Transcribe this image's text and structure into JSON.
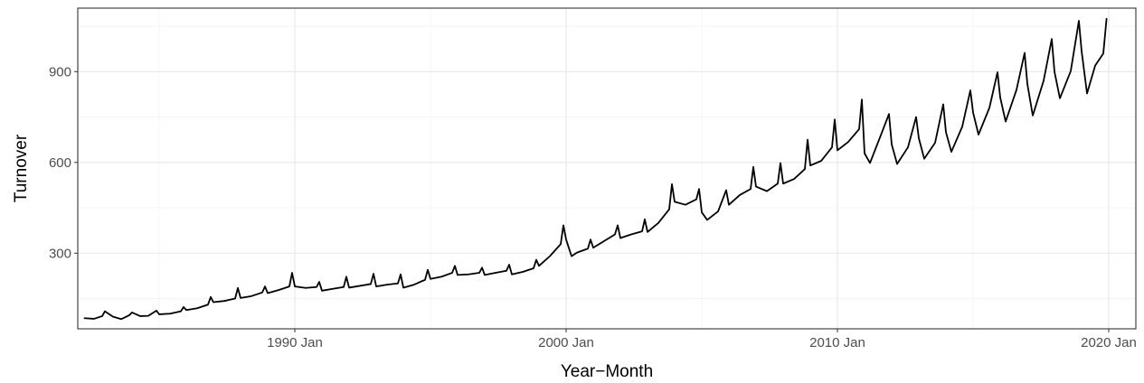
{
  "chart_data": {
    "type": "line",
    "title": "",
    "xlabel": "Year−Month",
    "ylabel": "Turnover",
    "xlim": [
      1982.0,
      2021.0
    ],
    "ylim": [
      50,
      1110
    ],
    "x_ticks": [
      {
        "value": 1990,
        "label": "1990 Jan"
      },
      {
        "value": 2000,
        "label": "2000 Jan"
      },
      {
        "value": 2010,
        "label": "2010 Jan"
      },
      {
        "value": 2020,
        "label": "2020 Jan"
      }
    ],
    "y_ticks": [
      {
        "value": 300,
        "label": "300"
      },
      {
        "value": 600,
        "label": "600"
      },
      {
        "value": 900,
        "label": "900"
      }
    ],
    "grid": true,
    "legend": "none",
    "series": [
      {
        "color": "#000000",
        "points": [
          [
            1982.25,
            85
          ],
          [
            1982.6,
            83
          ],
          [
            1982.9,
            92
          ],
          [
            1983.0,
            108
          ],
          [
            1983.3,
            90
          ],
          [
            1983.6,
            82
          ],
          [
            1983.9,
            95
          ],
          [
            1984.0,
            104
          ],
          [
            1984.3,
            92
          ],
          [
            1984.6,
            93
          ],
          [
            1984.9,
            110
          ],
          [
            1985.0,
            98
          ],
          [
            1985.4,
            100
          ],
          [
            1985.8,
            108
          ],
          [
            1985.9,
            122
          ],
          [
            1986.0,
            112
          ],
          [
            1986.4,
            118
          ],
          [
            1986.8,
            130
          ],
          [
            1986.9,
            155
          ],
          [
            1987.0,
            138
          ],
          [
            1987.4,
            142
          ],
          [
            1987.8,
            150
          ],
          [
            1987.9,
            185
          ],
          [
            1988.0,
            152
          ],
          [
            1988.4,
            158
          ],
          [
            1988.8,
            170
          ],
          [
            1988.9,
            190
          ],
          [
            1989.0,
            168
          ],
          [
            1989.4,
            178
          ],
          [
            1989.8,
            190
          ],
          [
            1989.9,
            235
          ],
          [
            1990.0,
            190
          ],
          [
            1990.4,
            185
          ],
          [
            1990.8,
            188
          ],
          [
            1990.9,
            205
          ],
          [
            1991.0,
            176
          ],
          [
            1991.4,
            182
          ],
          [
            1991.8,
            188
          ],
          [
            1991.9,
            222
          ],
          [
            1992.0,
            186
          ],
          [
            1992.4,
            192
          ],
          [
            1992.8,
            198
          ],
          [
            1992.9,
            232
          ],
          [
            1993.0,
            190
          ],
          [
            1993.4,
            196
          ],
          [
            1993.8,
            200
          ],
          [
            1993.9,
            230
          ],
          [
            1994.0,
            186
          ],
          [
            1994.4,
            196
          ],
          [
            1994.8,
            212
          ],
          [
            1994.9,
            245
          ],
          [
            1995.0,
            215
          ],
          [
            1995.4,
            222
          ],
          [
            1995.8,
            235
          ],
          [
            1995.9,
            258
          ],
          [
            1996.0,
            228
          ],
          [
            1996.4,
            230
          ],
          [
            1996.8,
            235
          ],
          [
            1996.9,
            252
          ],
          [
            1997.0,
            228
          ],
          [
            1997.4,
            235
          ],
          [
            1997.8,
            242
          ],
          [
            1997.9,
            262
          ],
          [
            1998.0,
            230
          ],
          [
            1998.4,
            238
          ],
          [
            1998.8,
            250
          ],
          [
            1998.9,
            278
          ],
          [
            1999.0,
            258
          ],
          [
            1999.4,
            290
          ],
          [
            1999.8,
            330
          ],
          [
            1999.9,
            392
          ],
          [
            2000.0,
            345
          ],
          [
            2000.2,
            290
          ],
          [
            2000.4,
            302
          ],
          [
            2000.8,
            315
          ],
          [
            2000.9,
            345
          ],
          [
            2001.0,
            318
          ],
          [
            2001.4,
            340
          ],
          [
            2001.8,
            362
          ],
          [
            2001.9,
            392
          ],
          [
            2002.0,
            350
          ],
          [
            2002.4,
            362
          ],
          [
            2002.8,
            372
          ],
          [
            2002.9,
            412
          ],
          [
            2003.0,
            370
          ],
          [
            2003.4,
            400
          ],
          [
            2003.8,
            445
          ],
          [
            2003.9,
            528
          ],
          [
            2004.0,
            470
          ],
          [
            2004.4,
            460
          ],
          [
            2004.8,
            478
          ],
          [
            2004.9,
            512
          ],
          [
            2005.0,
            435
          ],
          [
            2005.2,
            410
          ],
          [
            2005.6,
            438
          ],
          [
            2005.9,
            508
          ],
          [
            2006.0,
            460
          ],
          [
            2006.4,
            492
          ],
          [
            2006.8,
            512
          ],
          [
            2006.9,
            585
          ],
          [
            2007.0,
            520
          ],
          [
            2007.4,
            505
          ],
          [
            2007.8,
            530
          ],
          [
            2007.9,
            598
          ],
          [
            2008.0,
            530
          ],
          [
            2008.4,
            545
          ],
          [
            2008.8,
            578
          ],
          [
            2008.9,
            675
          ],
          [
            2009.0,
            590
          ],
          [
            2009.4,
            605
          ],
          [
            2009.8,
            650
          ],
          [
            2009.9,
            742
          ],
          [
            2010.0,
            640
          ],
          [
            2010.4,
            668
          ],
          [
            2010.8,
            710
          ],
          [
            2010.9,
            808
          ],
          [
            2011.0,
            630
          ],
          [
            2011.2,
            598
          ],
          [
            2011.6,
            690
          ],
          [
            2011.9,
            760
          ],
          [
            2012.0,
            660
          ],
          [
            2012.2,
            595
          ],
          [
            2012.6,
            650
          ],
          [
            2012.9,
            750
          ],
          [
            2013.0,
            680
          ],
          [
            2013.2,
            612
          ],
          [
            2013.6,
            665
          ],
          [
            2013.9,
            792
          ],
          [
            2014.0,
            700
          ],
          [
            2014.2,
            635
          ],
          [
            2014.6,
            718
          ],
          [
            2014.9,
            838
          ],
          [
            2015.0,
            765
          ],
          [
            2015.2,
            692
          ],
          [
            2015.6,
            780
          ],
          [
            2015.9,
            898
          ],
          [
            2016.0,
            815
          ],
          [
            2016.2,
            735
          ],
          [
            2016.6,
            840
          ],
          [
            2016.9,
            962
          ],
          [
            2017.0,
            860
          ],
          [
            2017.2,
            755
          ],
          [
            2017.6,
            870
          ],
          [
            2017.9,
            1008
          ],
          [
            2018.0,
            900
          ],
          [
            2018.2,
            812
          ],
          [
            2018.6,
            902
          ],
          [
            2018.9,
            1068
          ],
          [
            2019.0,
            968
          ],
          [
            2019.2,
            828
          ],
          [
            2019.5,
            920
          ],
          [
            2019.8,
            960
          ],
          [
            2019.92,
            1075
          ]
        ]
      }
    ]
  }
}
